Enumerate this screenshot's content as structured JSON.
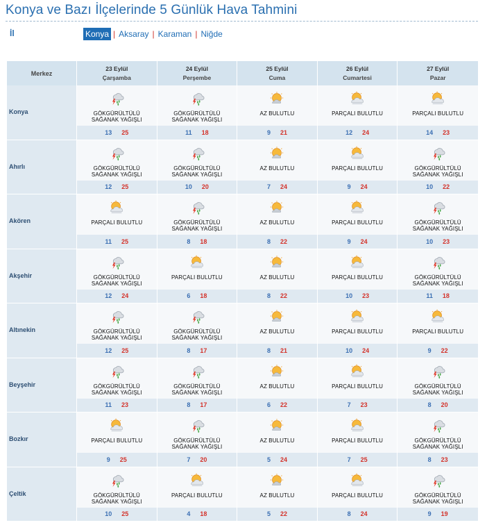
{
  "page": {
    "title": "Konya ve Bazı İlçelerinde 5 Günlük Hava Tahmini",
    "il_label": "İl",
    "provinces": [
      "Konya",
      "Aksaray",
      "Karaman",
      "Niğde"
    ],
    "active_province": "Konya"
  },
  "table": {
    "merkez_label": "Merkez",
    "days": [
      {
        "date": "23 Eylül",
        "name": "Çarşamba"
      },
      {
        "date": "24 Eylül",
        "name": "Perşembe"
      },
      {
        "date": "25 Eylül",
        "name": "Cuma"
      },
      {
        "date": "26 Eylül",
        "name": "Cumartesi"
      },
      {
        "date": "27 Eylül",
        "name": "Pazar"
      }
    ],
    "cities": [
      {
        "name": "Konya",
        "cells": [
          {
            "icon": "thunder-rain-icon",
            "cond": [
              "GÖKGÜRÜLTÜLÜ",
              "SAĞANAK YAĞIŞLI"
            ],
            "min": "13",
            "max": "25"
          },
          {
            "icon": "thunder-rain-icon",
            "cond": [
              "GÖKGÜRÜLTÜLÜ",
              "SAĞANAK YAĞIŞLI"
            ],
            "min": "11",
            "max": "18"
          },
          {
            "icon": "sun-few-clouds-icon",
            "cond": [
              "AZ BULUTLU"
            ],
            "min": "9",
            "max": "21"
          },
          {
            "icon": "partly-cloudy-icon",
            "cond": [
              "PARÇALI BULUTLU"
            ],
            "min": "12",
            "max": "24"
          },
          {
            "icon": "partly-cloudy-icon",
            "cond": [
              "PARÇALI BULUTLU"
            ],
            "min": "14",
            "max": "23"
          }
        ]
      },
      {
        "name": "Ahırlı",
        "cells": [
          {
            "icon": "thunder-rain-icon",
            "cond": [
              "GÖKGÜRÜLTÜLÜ",
              "SAĞANAK YAĞIŞLI"
            ],
            "min": "12",
            "max": "25"
          },
          {
            "icon": "thunder-rain-icon",
            "cond": [
              "GÖKGÜRÜLTÜLÜ",
              "SAĞANAK YAĞIŞLI"
            ],
            "min": "10",
            "max": "20"
          },
          {
            "icon": "sun-few-clouds-icon",
            "cond": [
              "AZ BULUTLU"
            ],
            "min": "7",
            "max": "24"
          },
          {
            "icon": "partly-cloudy-icon",
            "cond": [
              "PARÇALI BULUTLU"
            ],
            "min": "9",
            "max": "24"
          },
          {
            "icon": "thunder-rain-icon",
            "cond": [
              "GÖKGÜRÜLTÜLÜ",
              "SAĞANAK YAĞIŞLI"
            ],
            "min": "10",
            "max": "22"
          }
        ]
      },
      {
        "name": "Akören",
        "cells": [
          {
            "icon": "partly-cloudy-icon",
            "cond": [
              "PARÇALI BULUTLU"
            ],
            "min": "11",
            "max": "25"
          },
          {
            "icon": "thunder-rain-icon",
            "cond": [
              "GÖKGÜRÜLTÜLÜ",
              "SAĞANAK YAĞIŞLI"
            ],
            "min": "8",
            "max": "18"
          },
          {
            "icon": "sun-few-clouds-icon",
            "cond": [
              "AZ BULUTLU"
            ],
            "min": "8",
            "max": "22"
          },
          {
            "icon": "partly-cloudy-icon",
            "cond": [
              "PARÇALI BULUTLU"
            ],
            "min": "9",
            "max": "24"
          },
          {
            "icon": "thunder-rain-icon",
            "cond": [
              "GÖKGÜRÜLTÜLÜ",
              "SAĞANAK YAĞIŞLI"
            ],
            "min": "10",
            "max": "23"
          }
        ]
      },
      {
        "name": "Akşehir",
        "cells": [
          {
            "icon": "thunder-rain-icon",
            "cond": [
              "GÖKGÜRÜLTÜLÜ",
              "SAĞANAK YAĞIŞLI"
            ],
            "min": "12",
            "max": "24"
          },
          {
            "icon": "partly-cloudy-icon",
            "cond": [
              "PARÇALI BULUTLU"
            ],
            "min": "6",
            "max": "18"
          },
          {
            "icon": "sun-few-clouds-icon",
            "cond": [
              "AZ BULUTLU"
            ],
            "min": "8",
            "max": "22"
          },
          {
            "icon": "partly-cloudy-icon",
            "cond": [
              "PARÇALI BULUTLU"
            ],
            "min": "10",
            "max": "23"
          },
          {
            "icon": "thunder-rain-icon",
            "cond": [
              "GÖKGÜRÜLTÜLÜ",
              "SAĞANAK YAĞIŞLI"
            ],
            "min": "11",
            "max": "18"
          }
        ]
      },
      {
        "name": "Altınekin",
        "cells": [
          {
            "icon": "thunder-rain-icon",
            "cond": [
              "GÖKGÜRÜLTÜLÜ",
              "SAĞANAK YAĞIŞLI"
            ],
            "min": "12",
            "max": "25"
          },
          {
            "icon": "thunder-rain-icon",
            "cond": [
              "GÖKGÜRÜLTÜLÜ",
              "SAĞANAK YAĞIŞLI"
            ],
            "min": "8",
            "max": "17"
          },
          {
            "icon": "sun-few-clouds-icon",
            "cond": [
              "AZ BULUTLU"
            ],
            "min": "8",
            "max": "21"
          },
          {
            "icon": "partly-cloudy-icon",
            "cond": [
              "PARÇALI BULUTLU"
            ],
            "min": "10",
            "max": "24"
          },
          {
            "icon": "partly-cloudy-icon",
            "cond": [
              "PARÇALI BULUTLU"
            ],
            "min": "9",
            "max": "22"
          }
        ]
      },
      {
        "name": "Beyşehir",
        "cells": [
          {
            "icon": "thunder-rain-icon",
            "cond": [
              "GÖKGÜRÜLTÜLÜ",
              "SAĞANAK YAĞIŞLI"
            ],
            "min": "11",
            "max": "23"
          },
          {
            "icon": "thunder-rain-icon",
            "cond": [
              "GÖKGÜRÜLTÜLÜ",
              "SAĞANAK YAĞIŞLI"
            ],
            "min": "8",
            "max": "17"
          },
          {
            "icon": "sun-few-clouds-icon",
            "cond": [
              "AZ BULUTLU"
            ],
            "min": "6",
            "max": "22"
          },
          {
            "icon": "partly-cloudy-icon",
            "cond": [
              "PARÇALI BULUTLU"
            ],
            "min": "7",
            "max": "23"
          },
          {
            "icon": "thunder-rain-icon",
            "cond": [
              "GÖKGÜRÜLTÜLÜ",
              "SAĞANAK YAĞIŞLI"
            ],
            "min": "8",
            "max": "20"
          }
        ]
      },
      {
        "name": "Bozkır",
        "cells": [
          {
            "icon": "partly-cloudy-icon",
            "cond": [
              "PARÇALI BULUTLU"
            ],
            "min": "9",
            "max": "25"
          },
          {
            "icon": "thunder-rain-icon",
            "cond": [
              "GÖKGÜRÜLTÜLÜ",
              "SAĞANAK YAĞIŞLI"
            ],
            "min": "7",
            "max": "20"
          },
          {
            "icon": "sun-few-clouds-icon",
            "cond": [
              "AZ BULUTLU"
            ],
            "min": "5",
            "max": "24"
          },
          {
            "icon": "partly-cloudy-icon",
            "cond": [
              "PARÇALI BULUTLU"
            ],
            "min": "7",
            "max": "25"
          },
          {
            "icon": "thunder-rain-icon",
            "cond": [
              "GÖKGÜRÜLTÜLÜ",
              "SAĞANAK YAĞIŞLI"
            ],
            "min": "8",
            "max": "23"
          }
        ]
      },
      {
        "name": "Çeltik",
        "cells": [
          {
            "icon": "thunder-rain-icon",
            "cond": [
              "GÖKGÜRÜLTÜLÜ",
              "SAĞANAK YAĞIŞLI"
            ],
            "min": "10",
            "max": "25"
          },
          {
            "icon": "partly-cloudy-icon",
            "cond": [
              "PARÇALI BULUTLU"
            ],
            "min": "4",
            "max": "18"
          },
          {
            "icon": "sun-few-clouds-icon",
            "cond": [
              "AZ BULUTLU"
            ],
            "min": "5",
            "max": "22"
          },
          {
            "icon": "partly-cloudy-icon",
            "cond": [
              "PARÇALI BULUTLU"
            ],
            "min": "8",
            "max": "24"
          },
          {
            "icon": "thunder-rain-icon",
            "cond": [
              "GÖKGÜRÜLTÜLÜ",
              "SAĞANAK YAĞIŞLI"
            ],
            "min": "9",
            "max": "19"
          }
        ]
      }
    ]
  }
}
